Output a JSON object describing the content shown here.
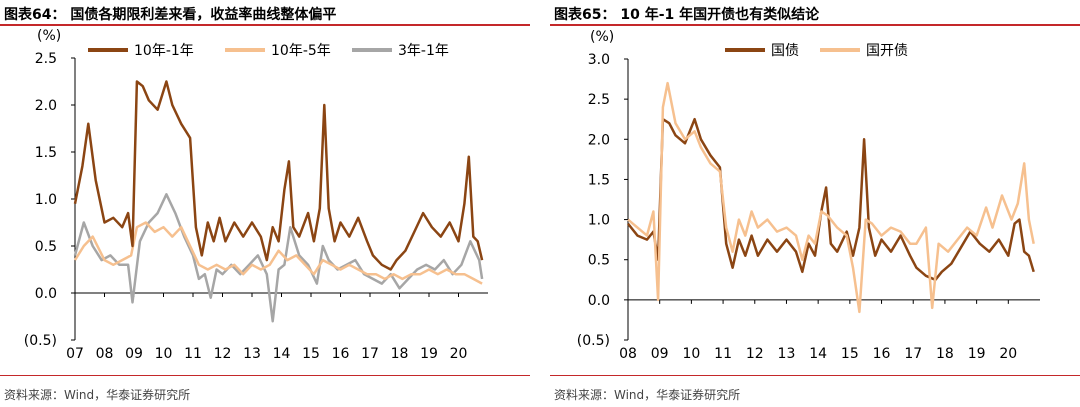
{
  "colors": {
    "dark": "#8B4513",
    "light": "#F6C08F",
    "gray": "#A6A6A6",
    "rule": "#C4282A"
  },
  "left": {
    "title": "图表64： 国债各期限利差来看，收益率曲线整体偏平",
    "source": "资料来源：Wind，华泰证券研究所"
  },
  "right": {
    "title": "图表65： 10 年-1 年国开债也有类似结论",
    "source": "资料来源：Wind，华泰证券研究所"
  },
  "chart_data": [
    {
      "type": "line",
      "title": "国债各期限利差来看，收益率曲线整体偏平",
      "ylabel": "(%)",
      "ylim": [
        -0.5,
        2.5
      ],
      "yticks": [
        "2.5",
        "2.0",
        "1.5",
        "1.0",
        "0.5",
        "0.0",
        "(0.5)"
      ],
      "yticks_values": [
        2.5,
        2.0,
        1.5,
        1.0,
        0.5,
        0.0,
        -0.5
      ],
      "xlim": [
        2007,
        2021
      ],
      "xticks": [
        "07",
        "08",
        "09",
        "10",
        "11",
        "12",
        "13",
        "14",
        "15",
        "16",
        "17",
        "18",
        "19",
        "20"
      ],
      "legend": "top",
      "series": [
        {
          "name": "10年-1年",
          "color": "#8B4513",
          "x": [
            2007.0,
            2007.25,
            2007.45,
            2007.7,
            2008.0,
            2008.3,
            2008.6,
            2008.8,
            2008.95,
            2009.1,
            2009.3,
            2009.5,
            2009.8,
            2010.1,
            2010.3,
            2010.6,
            2010.9,
            2011.1,
            2011.3,
            2011.5,
            2011.7,
            2011.9,
            2012.1,
            2012.4,
            2012.7,
            2013.0,
            2013.3,
            2013.5,
            2013.7,
            2013.9,
            2014.1,
            2014.25,
            2014.4,
            2014.6,
            2014.9,
            2015.1,
            2015.3,
            2015.45,
            2015.6,
            2015.8,
            2016.0,
            2016.3,
            2016.6,
            2016.9,
            2017.1,
            2017.4,
            2017.7,
            2017.9,
            2018.2,
            2018.5,
            2018.8,
            2019.1,
            2019.4,
            2019.7,
            2020.0,
            2020.2,
            2020.35,
            2020.5,
            2020.65,
            2020.8
          ],
          "values": [
            0.95,
            1.35,
            1.8,
            1.2,
            0.75,
            0.8,
            0.7,
            0.85,
            0.5,
            2.25,
            2.2,
            2.05,
            1.95,
            2.25,
            2.0,
            1.8,
            1.65,
            0.7,
            0.4,
            0.75,
            0.55,
            0.8,
            0.55,
            0.75,
            0.6,
            0.75,
            0.6,
            0.35,
            0.7,
            0.55,
            1.1,
            1.4,
            0.7,
            0.6,
            0.85,
            0.55,
            0.9,
            2.0,
            0.9,
            0.55,
            0.75,
            0.6,
            0.8,
            0.55,
            0.4,
            0.3,
            0.25,
            0.35,
            0.45,
            0.65,
            0.85,
            0.7,
            0.6,
            0.75,
            0.55,
            0.95,
            1.45,
            0.6,
            0.55,
            0.35
          ]
        },
        {
          "name": "10年-5年",
          "color": "#F6C08F",
          "x": [
            2007.0,
            2007.3,
            2007.6,
            2008.0,
            2008.3,
            2008.6,
            2008.9,
            2009.1,
            2009.4,
            2009.7,
            2010.0,
            2010.3,
            2010.6,
            2010.9,
            2011.2,
            2011.5,
            2011.8,
            2012.1,
            2012.4,
            2012.7,
            2013.0,
            2013.3,
            2013.6,
            2013.9,
            2014.2,
            2014.5,
            2014.8,
            2015.1,
            2015.4,
            2015.7,
            2016.0,
            2016.3,
            2016.6,
            2016.9,
            2017.2,
            2017.5,
            2017.8,
            2018.1,
            2018.4,
            2018.7,
            2019.0,
            2019.3,
            2019.6,
            2019.9,
            2020.2,
            2020.5,
            2020.8
          ],
          "values": [
            0.35,
            0.5,
            0.6,
            0.35,
            0.3,
            0.35,
            0.4,
            0.7,
            0.75,
            0.65,
            0.7,
            0.6,
            0.7,
            0.5,
            0.3,
            0.25,
            0.3,
            0.25,
            0.3,
            0.2,
            0.3,
            0.25,
            0.3,
            0.45,
            0.35,
            0.4,
            0.3,
            0.2,
            0.35,
            0.3,
            0.25,
            0.3,
            0.25,
            0.2,
            0.2,
            0.15,
            0.2,
            0.15,
            0.2,
            0.2,
            0.25,
            0.2,
            0.25,
            0.2,
            0.2,
            0.15,
            0.1
          ]
        },
        {
          "name": "3年-1年",
          "color": "#A6A6A6",
          "x": [
            2007.0,
            2007.3,
            2007.6,
            2007.9,
            2008.2,
            2008.5,
            2008.8,
            2008.95,
            2009.2,
            2009.5,
            2009.8,
            2010.1,
            2010.4,
            2010.7,
            2011.0,
            2011.2,
            2011.4,
            2011.6,
            2011.8,
            2012.0,
            2012.3,
            2012.6,
            2012.9,
            2013.2,
            2013.5,
            2013.7,
            2013.9,
            2014.1,
            2014.3,
            2014.6,
            2014.9,
            2015.2,
            2015.4,
            2015.6,
            2015.9,
            2016.2,
            2016.5,
            2016.8,
            2017.1,
            2017.4,
            2017.7,
            2018.0,
            2018.3,
            2018.6,
            2018.9,
            2019.2,
            2019.5,
            2019.8,
            2020.1,
            2020.4,
            2020.7,
            2020.8
          ],
          "values": [
            0.4,
            0.75,
            0.5,
            0.35,
            0.4,
            0.3,
            0.3,
            -0.1,
            0.55,
            0.75,
            0.85,
            1.05,
            0.85,
            0.6,
            0.4,
            0.15,
            0.2,
            -0.05,
            0.25,
            0.2,
            0.3,
            0.2,
            0.3,
            0.4,
            0.2,
            -0.3,
            0.25,
            0.3,
            0.7,
            0.4,
            0.3,
            0.1,
            0.5,
            0.35,
            0.25,
            0.3,
            0.35,
            0.2,
            0.15,
            0.1,
            0.2,
            0.05,
            0.15,
            0.25,
            0.3,
            0.25,
            0.35,
            0.2,
            0.3,
            0.55,
            0.35,
            0.15
          ]
        }
      ]
    },
    {
      "type": "line",
      "title": "10 年-1 年国开债也有类似结论",
      "ylabel": "(%)",
      "ylim": [
        -0.5,
        3.0
      ],
      "yticks": [
        "3.0",
        "2.5",
        "2.0",
        "1.5",
        "1.0",
        "0.5",
        "0.0",
        "(0.5)"
      ],
      "yticks_values": [
        3.0,
        2.5,
        2.0,
        1.5,
        1.0,
        0.5,
        0.0,
        -0.5
      ],
      "xlim": [
        2008,
        2021
      ],
      "xticks": [
        "08",
        "09",
        "10",
        "11",
        "12",
        "13",
        "14",
        "15",
        "16",
        "17",
        "18",
        "19",
        "20"
      ],
      "legend": "top",
      "series": [
        {
          "name": "国债",
          "color": "#8B4513",
          "x": [
            2008.0,
            2008.3,
            2008.6,
            2008.8,
            2008.95,
            2009.1,
            2009.3,
            2009.5,
            2009.8,
            2010.1,
            2010.3,
            2010.6,
            2010.9,
            2011.1,
            2011.3,
            2011.5,
            2011.7,
            2011.9,
            2012.1,
            2012.4,
            2012.7,
            2013.0,
            2013.3,
            2013.5,
            2013.7,
            2013.9,
            2014.1,
            2014.25,
            2014.4,
            2014.6,
            2014.9,
            2015.1,
            2015.3,
            2015.45,
            2015.6,
            2015.8,
            2016.0,
            2016.3,
            2016.6,
            2016.9,
            2017.1,
            2017.4,
            2017.7,
            2017.9,
            2018.2,
            2018.5,
            2018.8,
            2019.1,
            2019.4,
            2019.7,
            2020.0,
            2020.2,
            2020.35,
            2020.5,
            2020.65,
            2020.8
          ],
          "values": [
            0.95,
            0.8,
            0.75,
            0.85,
            0.5,
            2.25,
            2.2,
            2.05,
            1.95,
            2.25,
            2.0,
            1.8,
            1.65,
            0.7,
            0.4,
            0.75,
            0.55,
            0.8,
            0.55,
            0.75,
            0.6,
            0.75,
            0.6,
            0.35,
            0.7,
            0.55,
            1.1,
            1.4,
            0.7,
            0.6,
            0.85,
            0.55,
            0.9,
            2.0,
            0.9,
            0.55,
            0.75,
            0.6,
            0.8,
            0.55,
            0.4,
            0.3,
            0.25,
            0.35,
            0.45,
            0.65,
            0.85,
            0.7,
            0.6,
            0.75,
            0.55,
            0.95,
            1.0,
            0.6,
            0.55,
            0.35
          ]
        },
        {
          "name": "国开债",
          "color": "#F6C08F",
          "x": [
            2008.0,
            2008.3,
            2008.6,
            2008.8,
            2008.95,
            2009.1,
            2009.25,
            2009.5,
            2009.8,
            2010.1,
            2010.3,
            2010.6,
            2010.9,
            2011.1,
            2011.3,
            2011.5,
            2011.7,
            2011.9,
            2012.1,
            2012.4,
            2012.7,
            2013.0,
            2013.3,
            2013.5,
            2013.7,
            2013.9,
            2014.1,
            2014.3,
            2014.6,
            2014.9,
            2015.1,
            2015.3,
            2015.5,
            2015.7,
            2016.0,
            2016.3,
            2016.6,
            2016.9,
            2017.1,
            2017.4,
            2017.6,
            2017.8,
            2018.1,
            2018.4,
            2018.7,
            2019.0,
            2019.3,
            2019.5,
            2019.8,
            2020.1,
            2020.3,
            2020.5,
            2020.65,
            2020.8
          ],
          "values": [
            1.0,
            0.9,
            0.8,
            1.1,
            0.0,
            2.4,
            2.7,
            2.2,
            2.0,
            2.1,
            1.9,
            1.7,
            1.6,
            0.9,
            0.6,
            1.0,
            0.8,
            1.1,
            0.9,
            1.0,
            0.85,
            0.9,
            0.8,
            0.5,
            0.8,
            0.7,
            1.1,
            1.05,
            0.9,
            0.8,
            0.4,
            -0.15,
            1.0,
            0.95,
            0.8,
            0.9,
            0.85,
            0.7,
            0.7,
            0.9,
            -0.1,
            0.7,
            0.6,
            0.75,
            0.9,
            0.8,
            1.15,
            0.9,
            1.3,
            1.0,
            1.2,
            1.7,
            1.0,
            0.7
          ]
        }
      ]
    }
  ]
}
